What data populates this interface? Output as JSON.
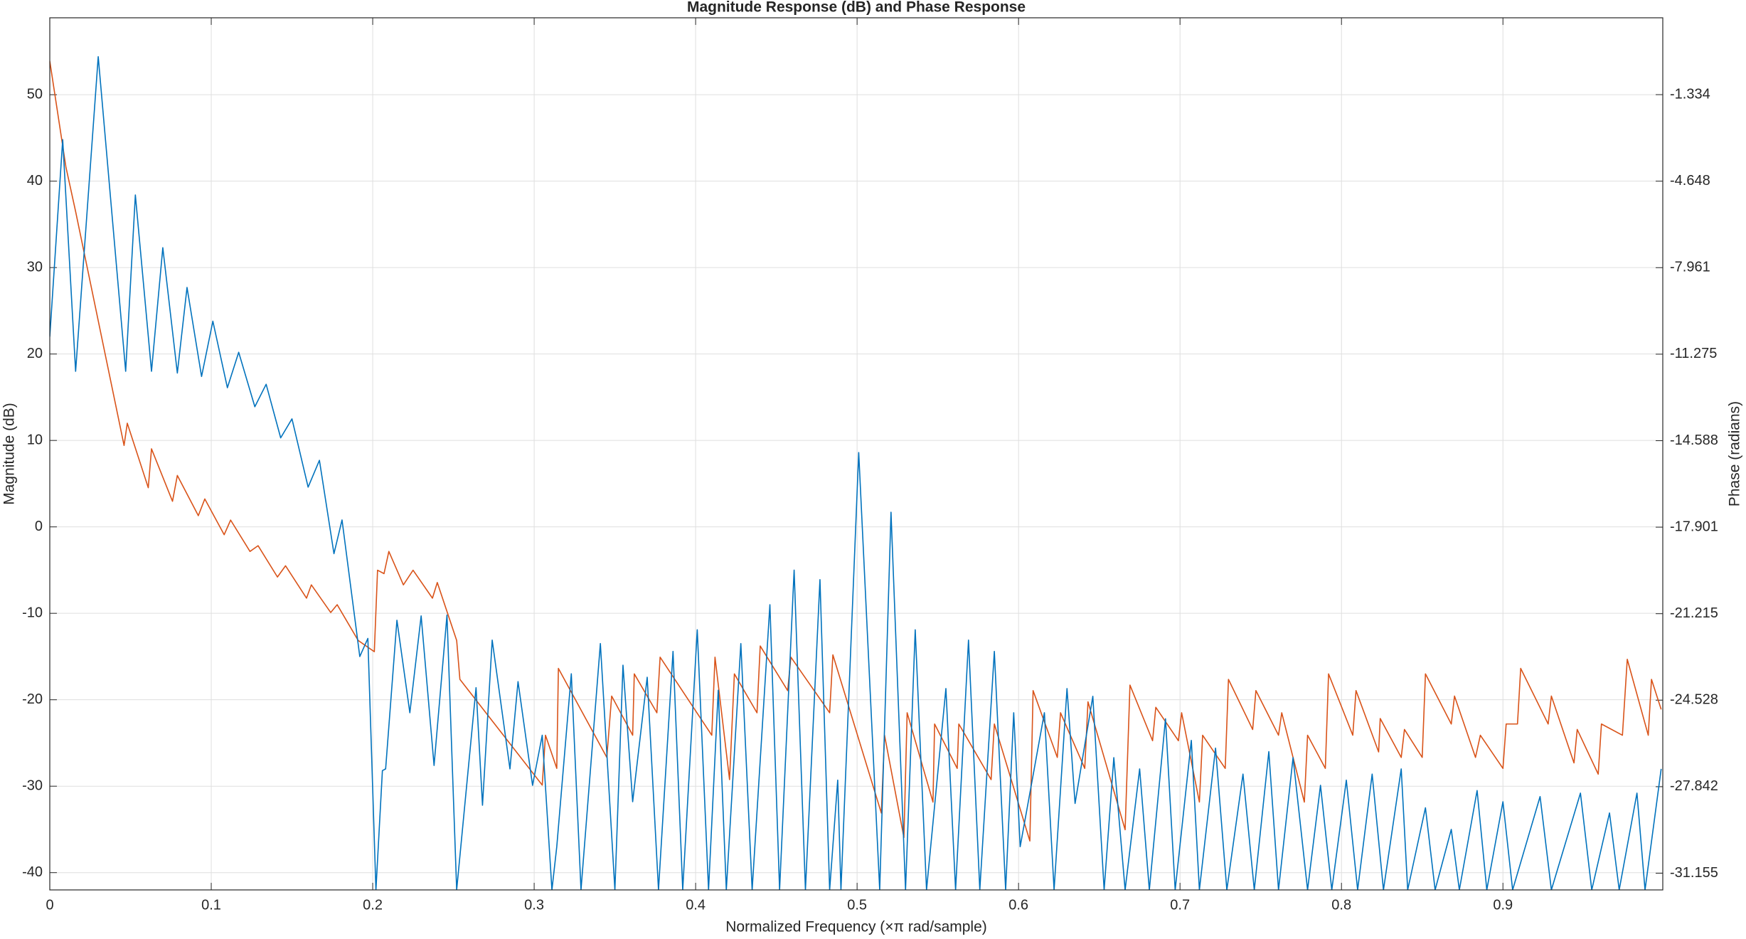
{
  "chart_data": {
    "type": "line",
    "title": "Magnitude Response (dB) and Phase Response",
    "x_label": "Normalized Frequency (×π rad/sample)",
    "y_label": "Magnitude (dB)",
    "y2_label": "Phase (radians)",
    "xlim": [
      0,
      0.999
    ],
    "xticks": [
      0,
      0.1,
      0.2,
      0.3,
      0.4,
      0.5,
      0.6,
      0.7,
      0.8,
      0.9
    ],
    "ylim": [
      -42,
      58.9
    ],
    "yticks": [
      -40,
      -30,
      -20,
      -10,
      0,
      10,
      20,
      30,
      40,
      50
    ],
    "y2lim": [
      -31.795,
      1.61
    ],
    "y2ticks": [
      -31.155,
      -27.842,
      -24.528,
      -21.215,
      -17.901,
      -14.588,
      -11.275,
      -7.961,
      -4.648,
      -1.334
    ],
    "grid": true,
    "series": [
      {
        "name": "Magnitude",
        "color": "#0072BD",
        "x": [
          0,
          0.008,
          0.016,
          0.03,
          0.047,
          0.053,
          0.063,
          0.07,
          0.079,
          0.085,
          0.094,
          0.101,
          0.11,
          0.117,
          0.127,
          0.134,
          0.143,
          0.15,
          0.16,
          0.167,
          0.176,
          0.181,
          0.192,
          0.197,
          0.202,
          0.206,
          0.208,
          0.215,
          0.223,
          0.23,
          0.238,
          0.246,
          0.252,
          0.264,
          0.268,
          0.274,
          0.285,
          0.29,
          0.299,
          0.305,
          0.311,
          0.314,
          0.323,
          0.329,
          0.341,
          0.35,
          0.355,
          0.361,
          0.37,
          0.377,
          0.386,
          0.392,
          0.401,
          0.408,
          0.414,
          0.419,
          0.428,
          0.435,
          0.446,
          0.452,
          0.461,
          0.468,
          0.477,
          0.483,
          0.488,
          0.49,
          0.501,
          0.514,
          0.521,
          0.53,
          0.536,
          0.543,
          0.555,
          0.561,
          0.569,
          0.576,
          0.585,
          0.592,
          0.597,
          0.601,
          0.616,
          0.622,
          0.63,
          0.635,
          0.646,
          0.653,
          0.659,
          0.666,
          0.675,
          0.681,
          0.691,
          0.697,
          0.707,
          0.712,
          0.722,
          0.729,
          0.739,
          0.746,
          0.755,
          0.761,
          0.77,
          0.779,
          0.787,
          0.794,
          0.803,
          0.81,
          0.819,
          0.826,
          0.837,
          0.841,
          0.852,
          0.858,
          0.868,
          0.873,
          0.884,
          0.89,
          0.9,
          0.906,
          0.923,
          0.93,
          0.948,
          0.955,
          0.966,
          0.972,
          0.983,
          0.988,
          0.998
        ],
        "values": [
          22,
          44.8,
          18,
          54.4,
          18,
          38.4,
          18,
          32.3,
          17.8,
          27.7,
          17.4,
          23.8,
          16.1,
          20.2,
          13.9,
          16.5,
          10.3,
          12.5,
          4.6,
          7.7,
          -3.1,
          0.8,
          -15,
          -12.9,
          -42,
          -28.2,
          -28,
          -10.8,
          -21.5,
          -10.3,
          -27.6,
          -10.2,
          -42,
          -18.6,
          -32.2,
          -13.1,
          -28,
          -17.9,
          -29.9,
          -24.1,
          -42,
          -37,
          -17,
          -42,
          -13.5,
          -42,
          -16,
          -31.8,
          -17.4,
          -42,
          -14.4,
          -42,
          -11.9,
          -42,
          -18.9,
          -42,
          -13.5,
          -42,
          -9,
          -42,
          -5,
          -42,
          -6.1,
          -42,
          -29.3,
          -42,
          8.6,
          -42,
          1.7,
          -42,
          -11.9,
          -42,
          -18.7,
          -42,
          -13.1,
          -42,
          -14.4,
          -42,
          -21.5,
          -37,
          -21.5,
          -42,
          -18.7,
          -32,
          -19.6,
          -42,
          -26.7,
          -42,
          -28,
          -42,
          -22.2,
          -42,
          -24.7,
          -42,
          -25.6,
          -42,
          -28.6,
          -42,
          -26,
          -42,
          -26.7,
          -42,
          -29.9,
          -42,
          -29.3,
          -42,
          -28.6,
          -42,
          -28,
          -42,
          -32.5,
          -42,
          -35,
          -42,
          -30.5,
          -42,
          -31.8,
          -42,
          -31.2,
          -42,
          -30.8,
          -42,
          -33.1,
          -42,
          -30.8,
          -42,
          -28
        ]
      },
      {
        "name": "Phase",
        "color": "#D95319",
        "axis": "y2",
        "x": [
          0,
          0.01,
          0.016,
          0.046,
          0.048,
          0.061,
          0.063,
          0.076,
          0.079,
          0.092,
          0.096,
          0.108,
          0.112,
          0.124,
          0.129,
          0.141,
          0.146,
          0.159,
          0.162,
          0.174,
          0.178,
          0.191,
          0.201,
          0.203,
          0.207,
          0.21,
          0.219,
          0.225,
          0.237,
          0.24,
          0.252,
          0.254,
          0.305,
          0.307,
          0.314,
          0.315,
          0.345,
          0.348,
          0.361,
          0.362,
          0.376,
          0.378,
          0.41,
          0.412,
          0.421,
          0.424,
          0.438,
          0.44,
          0.457,
          0.459,
          0.483,
          0.485,
          0.515,
          0.517,
          0.529,
          0.531,
          0.547,
          0.548,
          0.562,
          0.563,
          0.583,
          0.585,
          0.607,
          0.609,
          0.624,
          0.626,
          0.641,
          0.643,
          0.666,
          0.669,
          0.683,
          0.685,
          0.699,
          0.701,
          0.712,
          0.714,
          0.728,
          0.73,
          0.745,
          0.747,
          0.761,
          0.763,
          0.777,
          0.779,
          0.79,
          0.792,
          0.807,
          0.809,
          0.823,
          0.824,
          0.837,
          0.839,
          0.85,
          0.852,
          0.868,
          0.87,
          0.883,
          0.886,
          0.9,
          0.902,
          0.909,
          0.911,
          0.928,
          0.93,
          0.944,
          0.946,
          0.959,
          0.961,
          0.974,
          0.977,
          0.99,
          0.992,
          0.998
        ],
        "values": [
          -0.05,
          -4.11,
          -5.81,
          -14.77,
          -13.92,
          -16.39,
          -14.9,
          -16.91,
          -15.92,
          -17.46,
          -16.82,
          -18.19,
          -17.63,
          -18.83,
          -18.61,
          -19.81,
          -19.38,
          -20.62,
          -20.11,
          -21.17,
          -20.87,
          -22.24,
          -22.67,
          -19.55,
          -19.68,
          -18.83,
          -20.11,
          -19.55,
          -20.62,
          -20.02,
          -22.24,
          -23.73,
          -27.78,
          -25.87,
          -27.14,
          -23.31,
          -26.72,
          -24.37,
          -25.87,
          -23.52,
          -25.01,
          -22.88,
          -25.87,
          -22.88,
          -27.57,
          -23.52,
          -25.01,
          -22.45,
          -24.16,
          -22.88,
          -25.01,
          -22.79,
          -28.85,
          -25.87,
          -29.79,
          -25.01,
          -28.43,
          -25.44,
          -27.14,
          -25.44,
          -27.57,
          -25.44,
          -29.92,
          -24.16,
          -26.72,
          -25.01,
          -27.14,
          -24.59,
          -29.49,
          -23.95,
          -26.08,
          -24.8,
          -26.08,
          -25.01,
          -28.43,
          -25.87,
          -27.14,
          -23.73,
          -25.65,
          -24.16,
          -25.87,
          -25.01,
          -28.43,
          -25.87,
          -27.14,
          -23.52,
          -25.87,
          -24.16,
          -26.51,
          -25.23,
          -26.72,
          -25.65,
          -26.72,
          -23.52,
          -25.44,
          -24.37,
          -26.72,
          -25.87,
          -27.14,
          -25.44,
          -25.44,
          -23.31,
          -25.44,
          -24.37,
          -26.93,
          -25.65,
          -27.36,
          -25.44,
          -25.87,
          -22.96,
          -25.87,
          -23.73,
          -24.88
        ]
      }
    ]
  }
}
